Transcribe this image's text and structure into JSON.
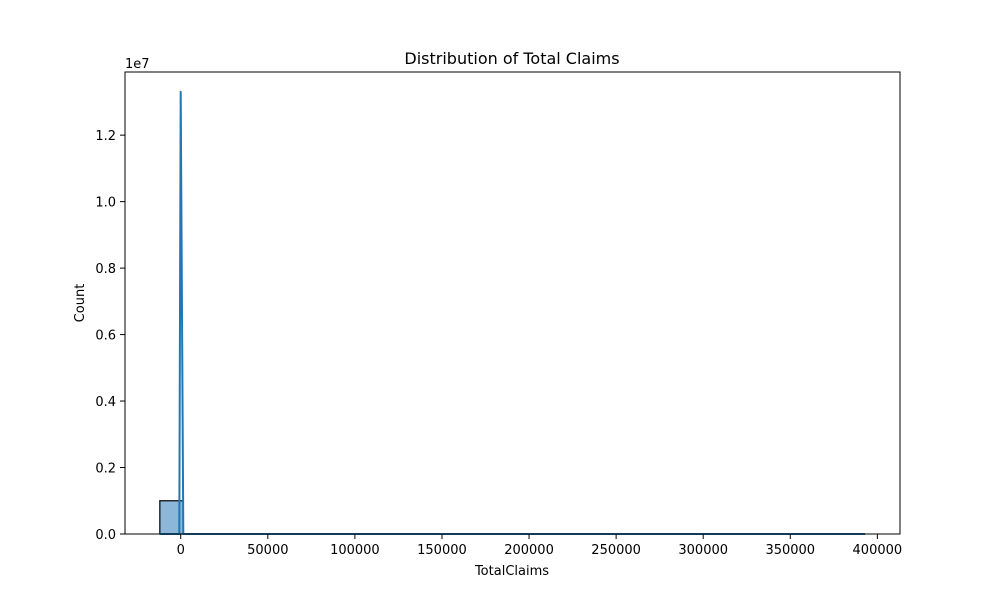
{
  "chart_data": {
    "type": "histogram",
    "title": "Distribution of Total Claims",
    "xlabel": "TotalClaims",
    "ylabel": "Count",
    "offset_text": "1e7",
    "xlim": [
      -32000,
      413000
    ],
    "ylim": [
      0,
      13900000
    ],
    "x_ticks": [
      0,
      50000,
      100000,
      150000,
      200000,
      250000,
      300000,
      350000,
      400000
    ],
    "x_tick_labels": [
      "0",
      "50000",
      "100000",
      "150000",
      "200000",
      "250000",
      "300000",
      "350000",
      "400000"
    ],
    "y_ticks": [
      0,
      2000000,
      4000000,
      6000000,
      8000000,
      10000000,
      12000000
    ],
    "y_tick_labels": [
      "0.0",
      "0.2",
      "0.4",
      "0.6",
      "0.8",
      "1.0",
      "1.2"
    ],
    "bars": [
      {
        "x_start": -12000,
        "x_end": 1500,
        "count": 1000000
      }
    ],
    "kde": {
      "x": [
        -12000,
        -800,
        0,
        1500,
        5000,
        393000
      ],
      "y": [
        0,
        0,
        13300000,
        0,
        0,
        0
      ]
    },
    "grid": false,
    "colors": {
      "bar_fill": "#8cb7d9",
      "bar_edge": "#000000",
      "kde_line": "#1f77b4"
    }
  }
}
